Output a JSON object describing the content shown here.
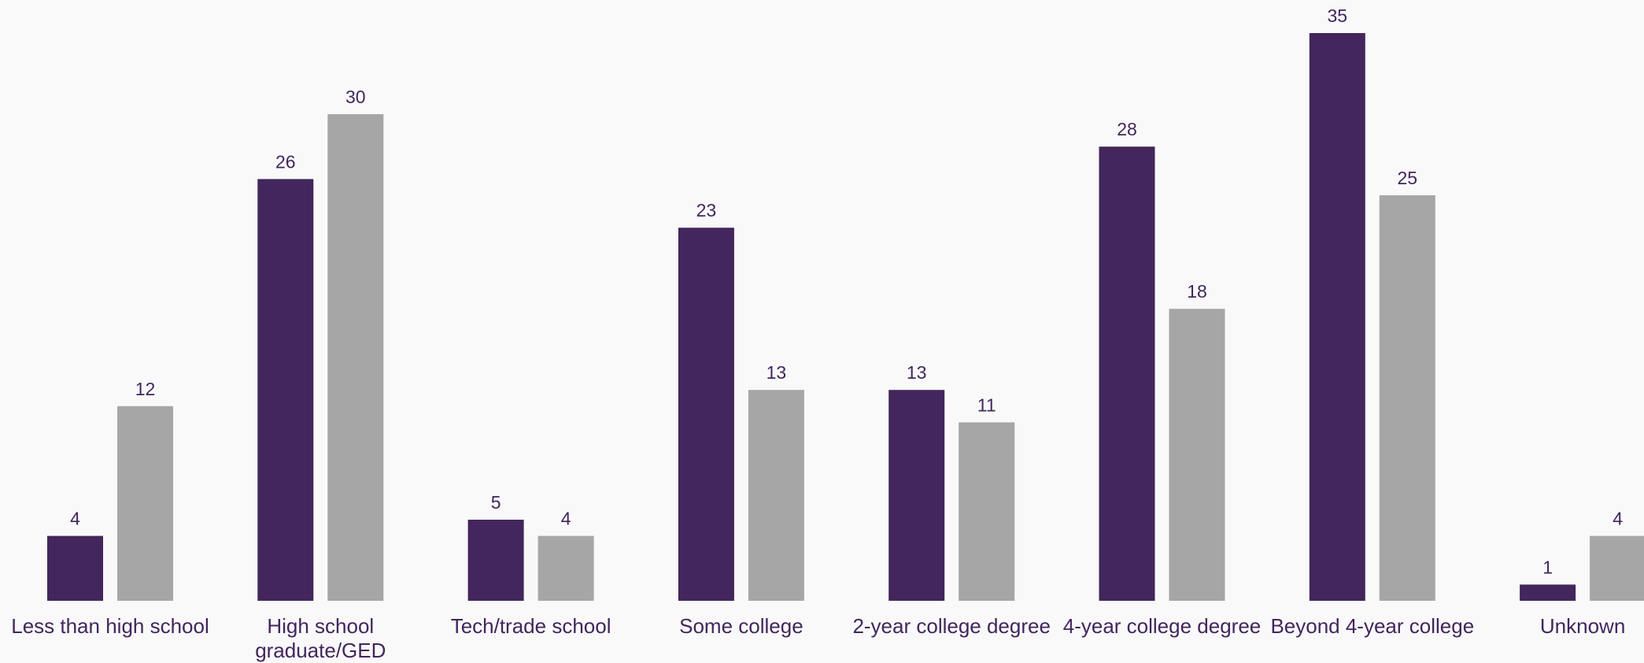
{
  "chart_data": {
    "type": "bar",
    "title": "",
    "xlabel": "",
    "ylabel": "",
    "ylim": [
      0,
      35
    ],
    "grid": false,
    "legend": "none",
    "categories": [
      [
        "Less than high school"
      ],
      [
        "High school",
        "graduate/GED"
      ],
      [
        "Tech/trade school"
      ],
      [
        "Some college"
      ],
      [
        "2-year college degree"
      ],
      [
        "4-year college degree"
      ],
      [
        "Beyond 4-year college"
      ],
      [
        "Unknown"
      ]
    ],
    "series": [
      {
        "color": "#42265c",
        "values": [
          4,
          26,
          5,
          23,
          13,
          28,
          35,
          1
        ]
      },
      {
        "color": "#a6a6a6",
        "values": [
          12,
          30,
          4,
          13,
          11,
          18,
          25,
          4
        ]
      }
    ]
  }
}
